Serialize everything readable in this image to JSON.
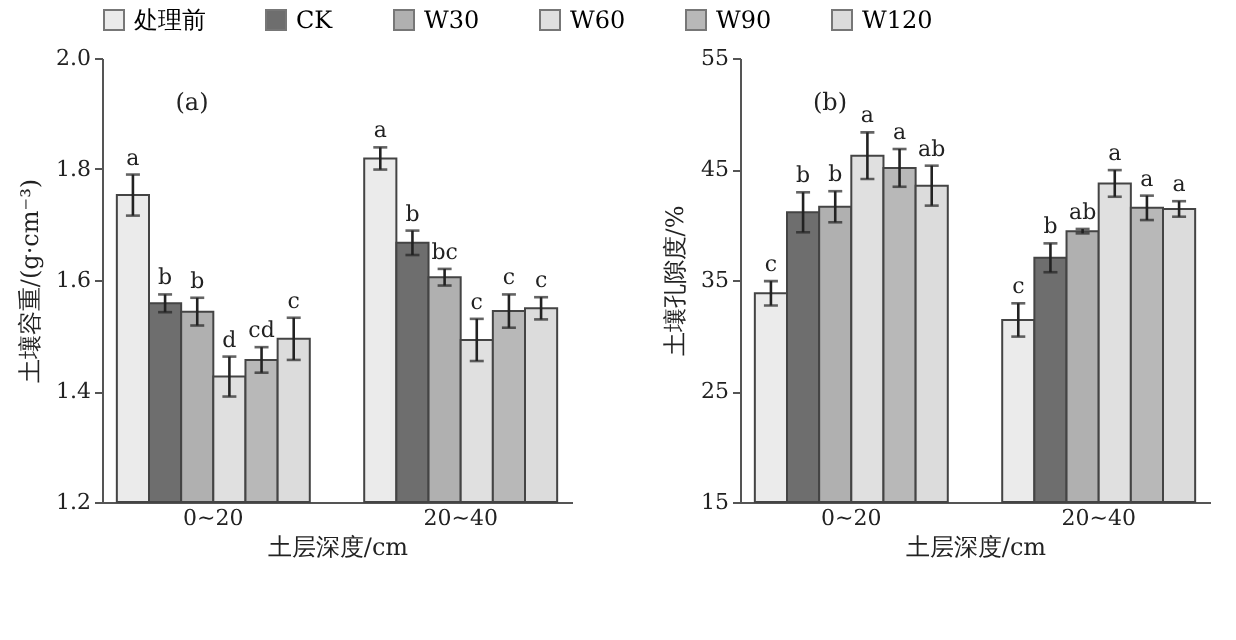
{
  "chart_data": [
    {
      "type": "bar",
      "xlabel": "土层深度/cm",
      "ylabel": "土壤容重/(g·cm⁻³)",
      "categories": [
        "0~20",
        "20~40"
      ],
      "ylim": [
        1.2,
        2.0
      ],
      "yticks": [
        1.2,
        1.4,
        1.6,
        1.8,
        {
          "value": 2.0,
          "label": "2.0"
        }
      ],
      "legend": "top",
      "annotations": [
        "(a)"
      ],
      "series": [
        {
          "name": "处理前",
          "color": "#ebebeb",
          "values": [
            1.753,
            1.819
          ],
          "errors": [
            0.037,
            0.02
          ],
          "value_labels": [
            "a",
            "a"
          ]
        },
        {
          "name": "CK",
          "color": "#6e6e6e",
          "values": [
            1.558,
            1.667
          ],
          "errors": [
            0.016,
            0.022
          ],
          "value_labels": [
            "b",
            "b"
          ]
        },
        {
          "name": "W30",
          "color": "#b0b0b0",
          "values": [
            1.543,
            1.605
          ],
          "errors": [
            0.025,
            0.015
          ],
          "value_labels": [
            "b",
            "bc"
          ]
        },
        {
          "name": "W60",
          "color": "#e0e0e0",
          "values": [
            1.426,
            1.492
          ],
          "errors": [
            0.036,
            0.038
          ],
          "value_labels": [
            "d",
            "c"
          ]
        },
        {
          "name": "W90",
          "color": "#b8b8b8",
          "values": [
            1.456,
            1.544
          ],
          "errors": [
            0.023,
            0.03
          ],
          "value_labels": [
            "cd",
            "c"
          ]
        },
        {
          "name": "W120",
          "color": "#dcdcdc",
          "values": [
            1.494,
            1.549
          ],
          "errors": [
            0.038,
            0.02
          ],
          "value_labels": [
            "c",
            "c"
          ]
        }
      ]
    },
    {
      "type": "bar",
      "xlabel": "土层深度/cm",
      "ylabel": "土壤孔隙度/%",
      "categories": [
        "0~20",
        "20~40"
      ],
      "ylim": [
        15,
        55
      ],
      "yticks": [
        15,
        25,
        35,
        45,
        55
      ],
      "annotations": [
        "(b)"
      ],
      "series": [
        {
          "color": "#ebebeb",
          "values": [
            33.8,
            31.4
          ],
          "errors": [
            1.1,
            1.5
          ],
          "value_labels": [
            "c",
            "c"
          ]
        },
        {
          "color": "#6e6e6e",
          "values": [
            41.1,
            37.0
          ],
          "errors": [
            1.8,
            1.3
          ],
          "value_labels": [
            "b",
            "b"
          ]
        },
        {
          "color": "#b0b0b0",
          "values": [
            41.6,
            39.4
          ],
          "errors": [
            1.4,
            0.2
          ],
          "value_labels": [
            "b",
            "ab"
          ]
        },
        {
          "color": "#e0e0e0",
          "values": [
            46.2,
            43.7
          ],
          "errors": [
            2.1,
            1.2
          ],
          "value_labels": [
            "a",
            "a"
          ]
        },
        {
          "color": "#b8b8b8",
          "values": [
            45.1,
            41.5
          ],
          "errors": [
            1.7,
            1.1
          ],
          "value_labels": [
            "a",
            "a"
          ]
        },
        {
          "color": "#dcdcdc",
          "values": [
            43.5,
            41.4
          ],
          "errors": [
            1.8,
            0.7
          ],
          "value_labels": [
            "ab",
            "a"
          ]
        }
      ]
    }
  ]
}
